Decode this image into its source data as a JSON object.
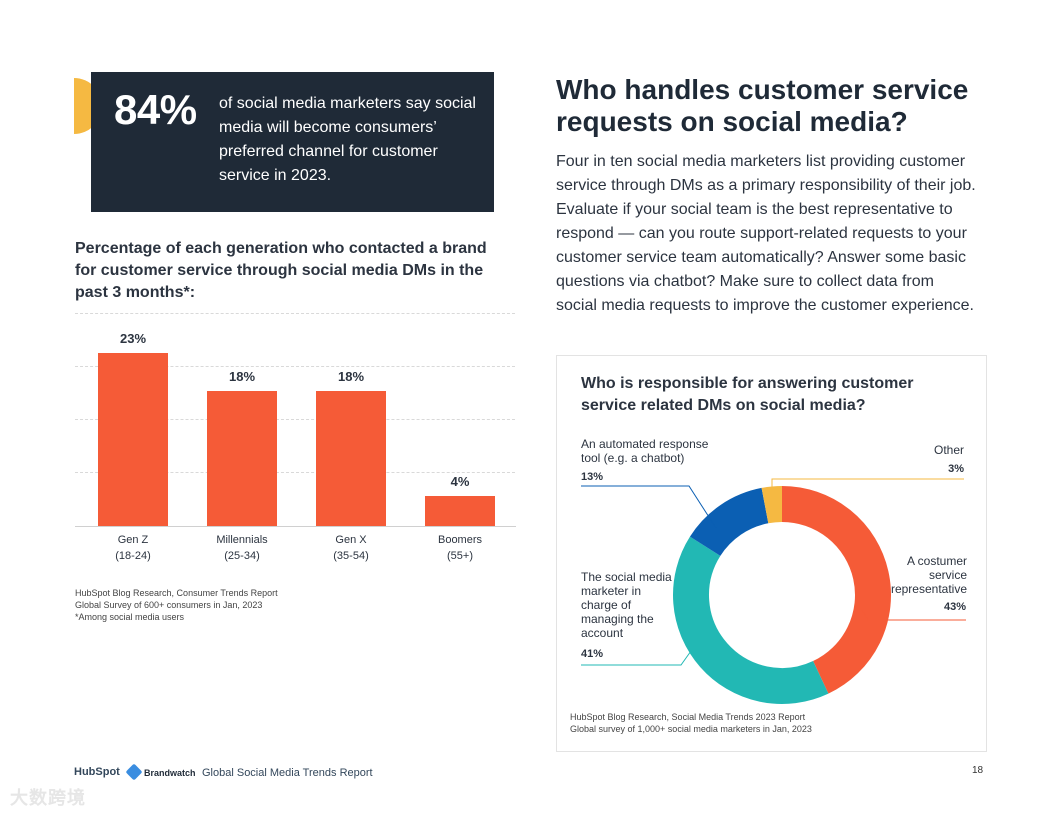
{
  "stat_callout": {
    "number": "84%",
    "text": "of social media marketers say social media will become consumers’ preferred channel for customer service in 2023."
  },
  "bar_section": {
    "heading": "Percentage of each generation who contacted a brand for customer service through social media DMs in the past 3 months*:",
    "source_line1": "HubSpot Blog Research, Consumer Trends Report",
    "source_line2": "Global Survey of 600+ consumers in Jan, 2023",
    "source_line3": "*Among social media users"
  },
  "article": {
    "title": "Who handles customer service requests on social media?",
    "body": "Four in ten social media marketers list providing customer service through DMs as a primary responsibility of their job. Evaluate if your social team is the best representative to respond — can you route support-related requests to your customer service team automatically? Answer some basic questions via chatbot? Make sure to collect data from social media requests to improve the customer experience."
  },
  "donut_section": {
    "heading": "Who is responsible for answering customer service related DMs on social media?",
    "source_line1": "HubSpot Blog Research, Social Media Trends 2023 Report",
    "source_line2": "Global survey of 1,000+ social media marketers in Jan, 2023"
  },
  "chart_data": [
    {
      "type": "bar",
      "title": "Percentage of each generation who contacted a brand for customer service through social media DMs in the past 3 months*:",
      "categories": [
        "Gen Z",
        "Millennials",
        "Gen X",
        "Boomers"
      ],
      "category_sublabels": [
        "(18-24)",
        "(25-34)",
        "(35-54)",
        "(55+)"
      ],
      "values": [
        23,
        18,
        18,
        4
      ],
      "value_labels": [
        "23%",
        "18%",
        "18%",
        "4%"
      ],
      "ylim": [
        0,
        25
      ],
      "grid": true,
      "color": "#f55b37"
    },
    {
      "type": "pie",
      "title": "Who is responsible for answering customer service related DMs on social media?",
      "slices": [
        {
          "label": "A costumer service representative",
          "value": 43,
          "pct_label": "43%",
          "color": "#f55b37"
        },
        {
          "label": "The social media marketer in charge of managing the account",
          "value": 41,
          "pct_label": "41%",
          "color": "#22b8b4"
        },
        {
          "label": "An automated response tool (e.g. a chatbot)",
          "value": 13,
          "pct_label": "13%",
          "color": "#0b5fb3"
        },
        {
          "label": "Other",
          "value": 3,
          "pct_label": "3%",
          "color": "#f5b942"
        }
      ]
    }
  ],
  "footer": {
    "hubspot": "HubSpot",
    "brandwatch": "Brandwatch",
    "report_name": "Global Social Media Trends Report",
    "page_number": "18"
  },
  "watermark": "大数跨境"
}
